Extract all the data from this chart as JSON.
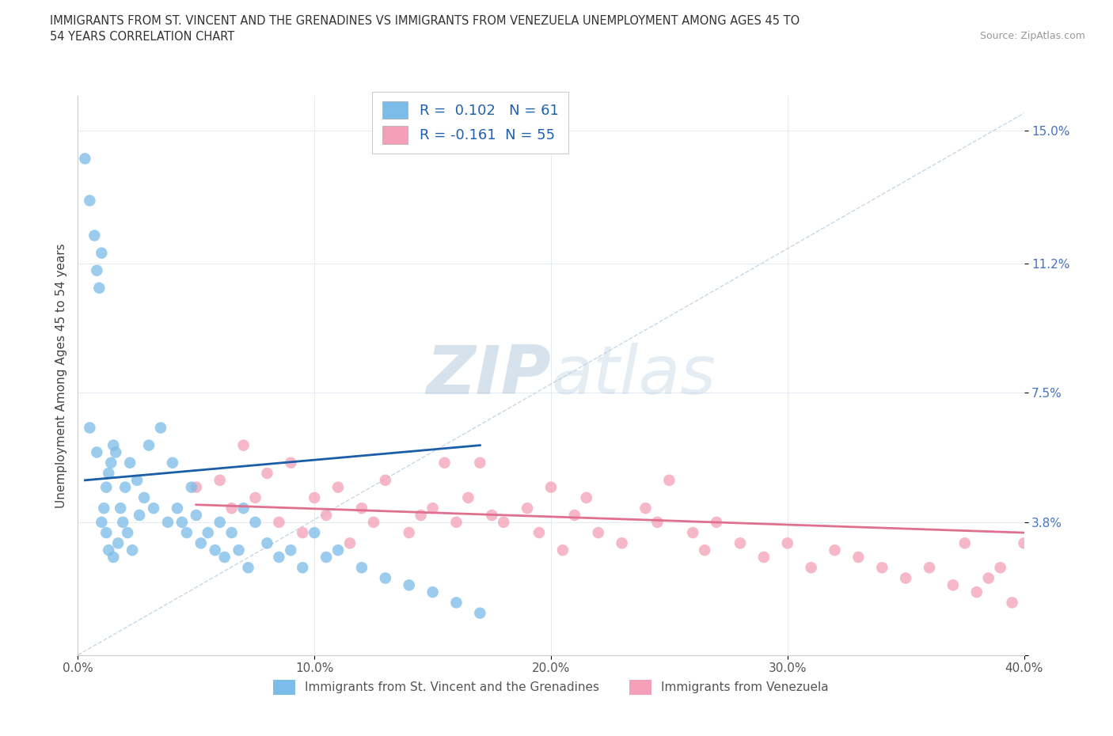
{
  "title_line1": "IMMIGRANTS FROM ST. VINCENT AND THE GRENADINES VS IMMIGRANTS FROM VENEZUELA UNEMPLOYMENT AMONG AGES 45 TO",
  "title_line2": "54 YEARS CORRELATION CHART",
  "source": "Source: ZipAtlas.com",
  "ylabel": "Unemployment Among Ages 45 to 54 years",
  "xlim": [
    0.0,
    0.4
  ],
  "ylim": [
    0.0,
    0.16
  ],
  "xticks": [
    0.0,
    0.1,
    0.2,
    0.3,
    0.4
  ],
  "xticklabels": [
    "0.0%",
    "10.0%",
    "20.0%",
    "30.0%",
    "40.0%"
  ],
  "ytick_positions": [
    0.0,
    0.038,
    0.075,
    0.112,
    0.15
  ],
  "ytick_labels": [
    "",
    "3.8%",
    "7.5%",
    "11.2%",
    "15.0%"
  ],
  "r1": 0.102,
  "n1": 61,
  "r2": -0.161,
  "n2": 55,
  "color1": "#7bbce8",
  "color2": "#f4a0b8",
  "trend1_color": "#1a5ea8",
  "trend2_color": "#e07090",
  "diag_color": "#b8cfe0",
  "legend1_label": "Immigrants from St. Vincent and the Grenadines",
  "legend2_label": "Immigrants from Venezuela",
  "watermark_zip": "ZIP",
  "watermark_atlas": "atlas",
  "figsize": [
    14.06,
    9.3
  ],
  "dpi": 100,
  "blue_x": [
    0.003,
    0.005,
    0.005,
    0.007,
    0.008,
    0.008,
    0.009,
    0.01,
    0.01,
    0.011,
    0.012,
    0.012,
    0.013,
    0.013,
    0.014,
    0.015,
    0.015,
    0.016,
    0.017,
    0.018,
    0.019,
    0.02,
    0.021,
    0.022,
    0.023,
    0.025,
    0.026,
    0.028,
    0.03,
    0.032,
    0.035,
    0.038,
    0.04,
    0.042,
    0.044,
    0.046,
    0.048,
    0.05,
    0.052,
    0.055,
    0.058,
    0.06,
    0.062,
    0.065,
    0.068,
    0.07,
    0.072,
    0.075,
    0.08,
    0.085,
    0.09,
    0.095,
    0.1,
    0.105,
    0.11,
    0.12,
    0.13,
    0.14,
    0.15,
    0.16,
    0.17
  ],
  "blue_y": [
    0.142,
    0.13,
    0.065,
    0.12,
    0.11,
    0.058,
    0.105,
    0.115,
    0.038,
    0.042,
    0.048,
    0.035,
    0.052,
    0.03,
    0.055,
    0.06,
    0.028,
    0.058,
    0.032,
    0.042,
    0.038,
    0.048,
    0.035,
    0.055,
    0.03,
    0.05,
    0.04,
    0.045,
    0.06,
    0.042,
    0.065,
    0.038,
    0.055,
    0.042,
    0.038,
    0.035,
    0.048,
    0.04,
    0.032,
    0.035,
    0.03,
    0.038,
    0.028,
    0.035,
    0.03,
    0.042,
    0.025,
    0.038,
    0.032,
    0.028,
    0.03,
    0.025,
    0.035,
    0.028,
    0.03,
    0.025,
    0.022,
    0.02,
    0.018,
    0.015,
    0.012
  ],
  "pink_x": [
    0.05,
    0.06,
    0.065,
    0.07,
    0.075,
    0.08,
    0.085,
    0.09,
    0.095,
    0.1,
    0.105,
    0.11,
    0.115,
    0.12,
    0.125,
    0.13,
    0.14,
    0.145,
    0.15,
    0.155,
    0.16,
    0.165,
    0.17,
    0.175,
    0.18,
    0.19,
    0.195,
    0.2,
    0.205,
    0.21,
    0.215,
    0.22,
    0.23,
    0.24,
    0.245,
    0.25,
    0.26,
    0.265,
    0.27,
    0.28,
    0.29,
    0.3,
    0.31,
    0.32,
    0.33,
    0.34,
    0.35,
    0.36,
    0.37,
    0.375,
    0.38,
    0.385,
    0.39,
    0.395,
    0.4
  ],
  "pink_y": [
    0.048,
    0.05,
    0.042,
    0.06,
    0.045,
    0.052,
    0.038,
    0.055,
    0.035,
    0.045,
    0.04,
    0.048,
    0.032,
    0.042,
    0.038,
    0.05,
    0.035,
    0.04,
    0.042,
    0.055,
    0.038,
    0.045,
    0.055,
    0.04,
    0.038,
    0.042,
    0.035,
    0.048,
    0.03,
    0.04,
    0.045,
    0.035,
    0.032,
    0.042,
    0.038,
    0.05,
    0.035,
    0.03,
    0.038,
    0.032,
    0.028,
    0.032,
    0.025,
    0.03,
    0.028,
    0.025,
    0.022,
    0.025,
    0.02,
    0.032,
    0.018,
    0.022,
    0.025,
    0.015,
    0.032
  ],
  "trend1_x_start": 0.003,
  "trend1_x_end": 0.17,
  "trend1_y_start": 0.05,
  "trend1_y_end": 0.06,
  "trend2_x_start": 0.05,
  "trend2_x_end": 0.4,
  "trend2_y_start": 0.043,
  "trend2_y_end": 0.035
}
